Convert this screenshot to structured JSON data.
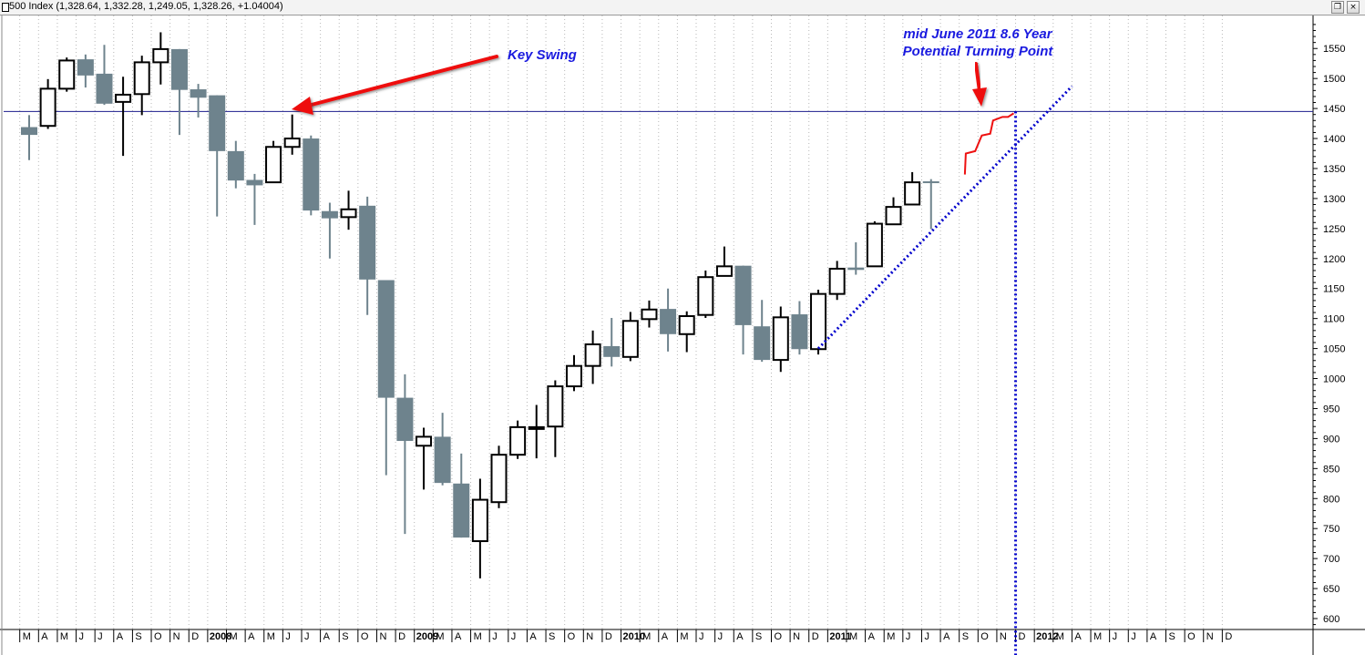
{
  "window": {
    "title": "500 Index (1,328.64, 1,332.28, 1,249.05, 1,328.26, +1.04004)",
    "restore_icon": "restore-window-icon",
    "close_icon": "close-window-icon"
  },
  "colors": {
    "up_fill": "#ffffff",
    "up_stroke": "#000000",
    "down_fill": "#6e838d",
    "grid": "#b8b8b8",
    "hline": "#1c1c8c",
    "trend": "#0000cc",
    "arrow": "#ee1111",
    "annotation_text": "#1a1adf"
  },
  "chart_data": {
    "type": "candlestick",
    "title": "500 Index",
    "timeframe": "monthly",
    "ylim": [
      580,
      1600
    ],
    "y_ticks": [
      600,
      650,
      700,
      750,
      800,
      850,
      900,
      950,
      1000,
      1050,
      1100,
      1150,
      1200,
      1250,
      1300,
      1350,
      1400,
      1450,
      1500,
      1550
    ],
    "grid": "vertical dotted monthly",
    "x_labels": [
      "M",
      "A",
      "M",
      "J",
      "J",
      "A",
      "S",
      "O",
      "N",
      "D",
      "2008",
      "M",
      "A",
      "M",
      "J",
      "J",
      "A",
      "S",
      "O",
      "N",
      "D",
      "2009",
      "M",
      "A",
      "M",
      "J",
      "J",
      "A",
      "S",
      "O",
      "N",
      "D",
      "2010",
      "M",
      "A",
      "M",
      "J",
      "J",
      "A",
      "S",
      "O",
      "N",
      "D",
      "2011",
      "M",
      "A",
      "M",
      "J",
      "J",
      "A",
      "S",
      "O",
      "N",
      "D",
      "2012",
      "M",
      "A",
      "M",
      "J",
      "J",
      "A",
      "S",
      "O",
      "N",
      "D"
    ],
    "candles": [
      {
        "open": 1419,
        "high": 1439,
        "low": 1364,
        "close": 1406
      },
      {
        "open": 1421,
        "high": 1499,
        "low": 1416,
        "close": 1483
      },
      {
        "open": 1483,
        "high": 1535,
        "low": 1478,
        "close": 1530
      },
      {
        "open": 1532,
        "high": 1540,
        "low": 1485,
        "close": 1505
      },
      {
        "open": 1508,
        "high": 1556,
        "low": 1456,
        "close": 1458
      },
      {
        "open": 1461,
        "high": 1503,
        "low": 1371,
        "close": 1473
      },
      {
        "open": 1474,
        "high": 1538,
        "low": 1439,
        "close": 1527
      },
      {
        "open": 1527,
        "high": 1577,
        "low": 1490,
        "close": 1549
      },
      {
        "open": 1549,
        "high": 1549,
        "low": 1406,
        "close": 1481
      },
      {
        "open": 1482,
        "high": 1491,
        "low": 1435,
        "close": 1468
      },
      {
        "open": 1472,
        "high": 1472,
        "low": 1270,
        "close": 1379
      },
      {
        "open": 1379,
        "high": 1396,
        "low": 1317,
        "close": 1330
      },
      {
        "open": 1331,
        "high": 1341,
        "low": 1256,
        "close": 1322
      },
      {
        "open": 1327,
        "high": 1396,
        "low": 1327,
        "close": 1386
      },
      {
        "open": 1386,
        "high": 1440,
        "low": 1373,
        "close": 1400
      },
      {
        "open": 1400,
        "high": 1405,
        "low": 1272,
        "close": 1280
      },
      {
        "open": 1279,
        "high": 1293,
        "low": 1200,
        "close": 1267
      },
      {
        "open": 1269,
        "high": 1313,
        "low": 1248,
        "close": 1282
      },
      {
        "open": 1288,
        "high": 1303,
        "low": 1106,
        "close": 1165
      },
      {
        "open": 1164,
        "high": 1164,
        "low": 839,
        "close": 968
      },
      {
        "open": 968,
        "high": 1007,
        "low": 741,
        "close": 896
      },
      {
        "open": 888,
        "high": 918,
        "low": 815,
        "close": 903
      },
      {
        "open": 903,
        "high": 943,
        "low": 822,
        "close": 826
      },
      {
        "open": 825,
        "high": 875,
        "low": 735,
        "close": 735
      },
      {
        "open": 729,
        "high": 833,
        "low": 667,
        "close": 798
      },
      {
        "open": 794,
        "high": 888,
        "low": 784,
        "close": 873
      },
      {
        "open": 873,
        "high": 930,
        "low": 866,
        "close": 919
      },
      {
        "open": 918,
        "high": 956,
        "low": 867,
        "close": 919
      },
      {
        "open": 920,
        "high": 997,
        "low": 869,
        "close": 987
      },
      {
        "open": 987,
        "high": 1039,
        "low": 979,
        "close": 1021
      },
      {
        "open": 1021,
        "high": 1080,
        "low": 991,
        "close": 1057
      },
      {
        "open": 1054,
        "high": 1101,
        "low": 1020,
        "close": 1036
      },
      {
        "open": 1036,
        "high": 1111,
        "low": 1029,
        "close": 1096
      },
      {
        "open": 1099,
        "high": 1130,
        "low": 1085,
        "close": 1115
      },
      {
        "open": 1116,
        "high": 1150,
        "low": 1045,
        "close": 1074
      },
      {
        "open": 1074,
        "high": 1112,
        "low": 1044,
        "close": 1104
      },
      {
        "open": 1106,
        "high": 1180,
        "low": 1101,
        "close": 1169
      },
      {
        "open": 1171,
        "high": 1220,
        "low": 1170,
        "close": 1187
      },
      {
        "open": 1188,
        "high": 1188,
        "low": 1040,
        "close": 1089
      },
      {
        "open": 1087,
        "high": 1131,
        "low": 1028,
        "close": 1031
      },
      {
        "open": 1031,
        "high": 1120,
        "low": 1011,
        "close": 1102
      },
      {
        "open": 1107,
        "high": 1129,
        "low": 1040,
        "close": 1049
      },
      {
        "open": 1049,
        "high": 1148,
        "low": 1040,
        "close": 1141
      },
      {
        "open": 1141,
        "high": 1196,
        "low": 1131,
        "close": 1183
      },
      {
        "open": 1185,
        "high": 1227,
        "low": 1173,
        "close": 1181
      },
      {
        "open": 1187,
        "high": 1262,
        "low": 1187,
        "close": 1258
      },
      {
        "open": 1257,
        "high": 1302,
        "low": 1257,
        "close": 1286
      },
      {
        "open": 1290,
        "high": 1344,
        "low": 1290,
        "close": 1327
      },
      {
        "open": 1328.64,
        "high": 1332.28,
        "low": 1249.05,
        "close": 1328.26
      }
    ],
    "horizontal_line": 1445,
    "trendline": {
      "from": {
        "month_index": 42,
        "y": 1050
      },
      "to": {
        "month_index": 55.5,
        "y": 1487
      }
    },
    "vertical_line_month_index": 52.5,
    "projection_path": [
      {
        "month_index": 49.8,
        "y": 1340
      },
      {
        "month_index": 49.85,
        "y": 1375
      },
      {
        "month_index": 50.35,
        "y": 1379
      },
      {
        "month_index": 50.7,
        "y": 1405
      },
      {
        "month_index": 51.15,
        "y": 1408
      },
      {
        "month_index": 51.3,
        "y": 1430
      },
      {
        "month_index": 51.8,
        "y": 1436
      },
      {
        "month_index": 52.1,
        "y": 1436
      },
      {
        "month_index": 52.4,
        "y": 1442
      }
    ],
    "annotations": {
      "key_swing": "Key Swing",
      "turning_point_line1": "mid June 2011 8.6 Year",
      "turning_point_line2": "Potential Turning Point"
    }
  }
}
